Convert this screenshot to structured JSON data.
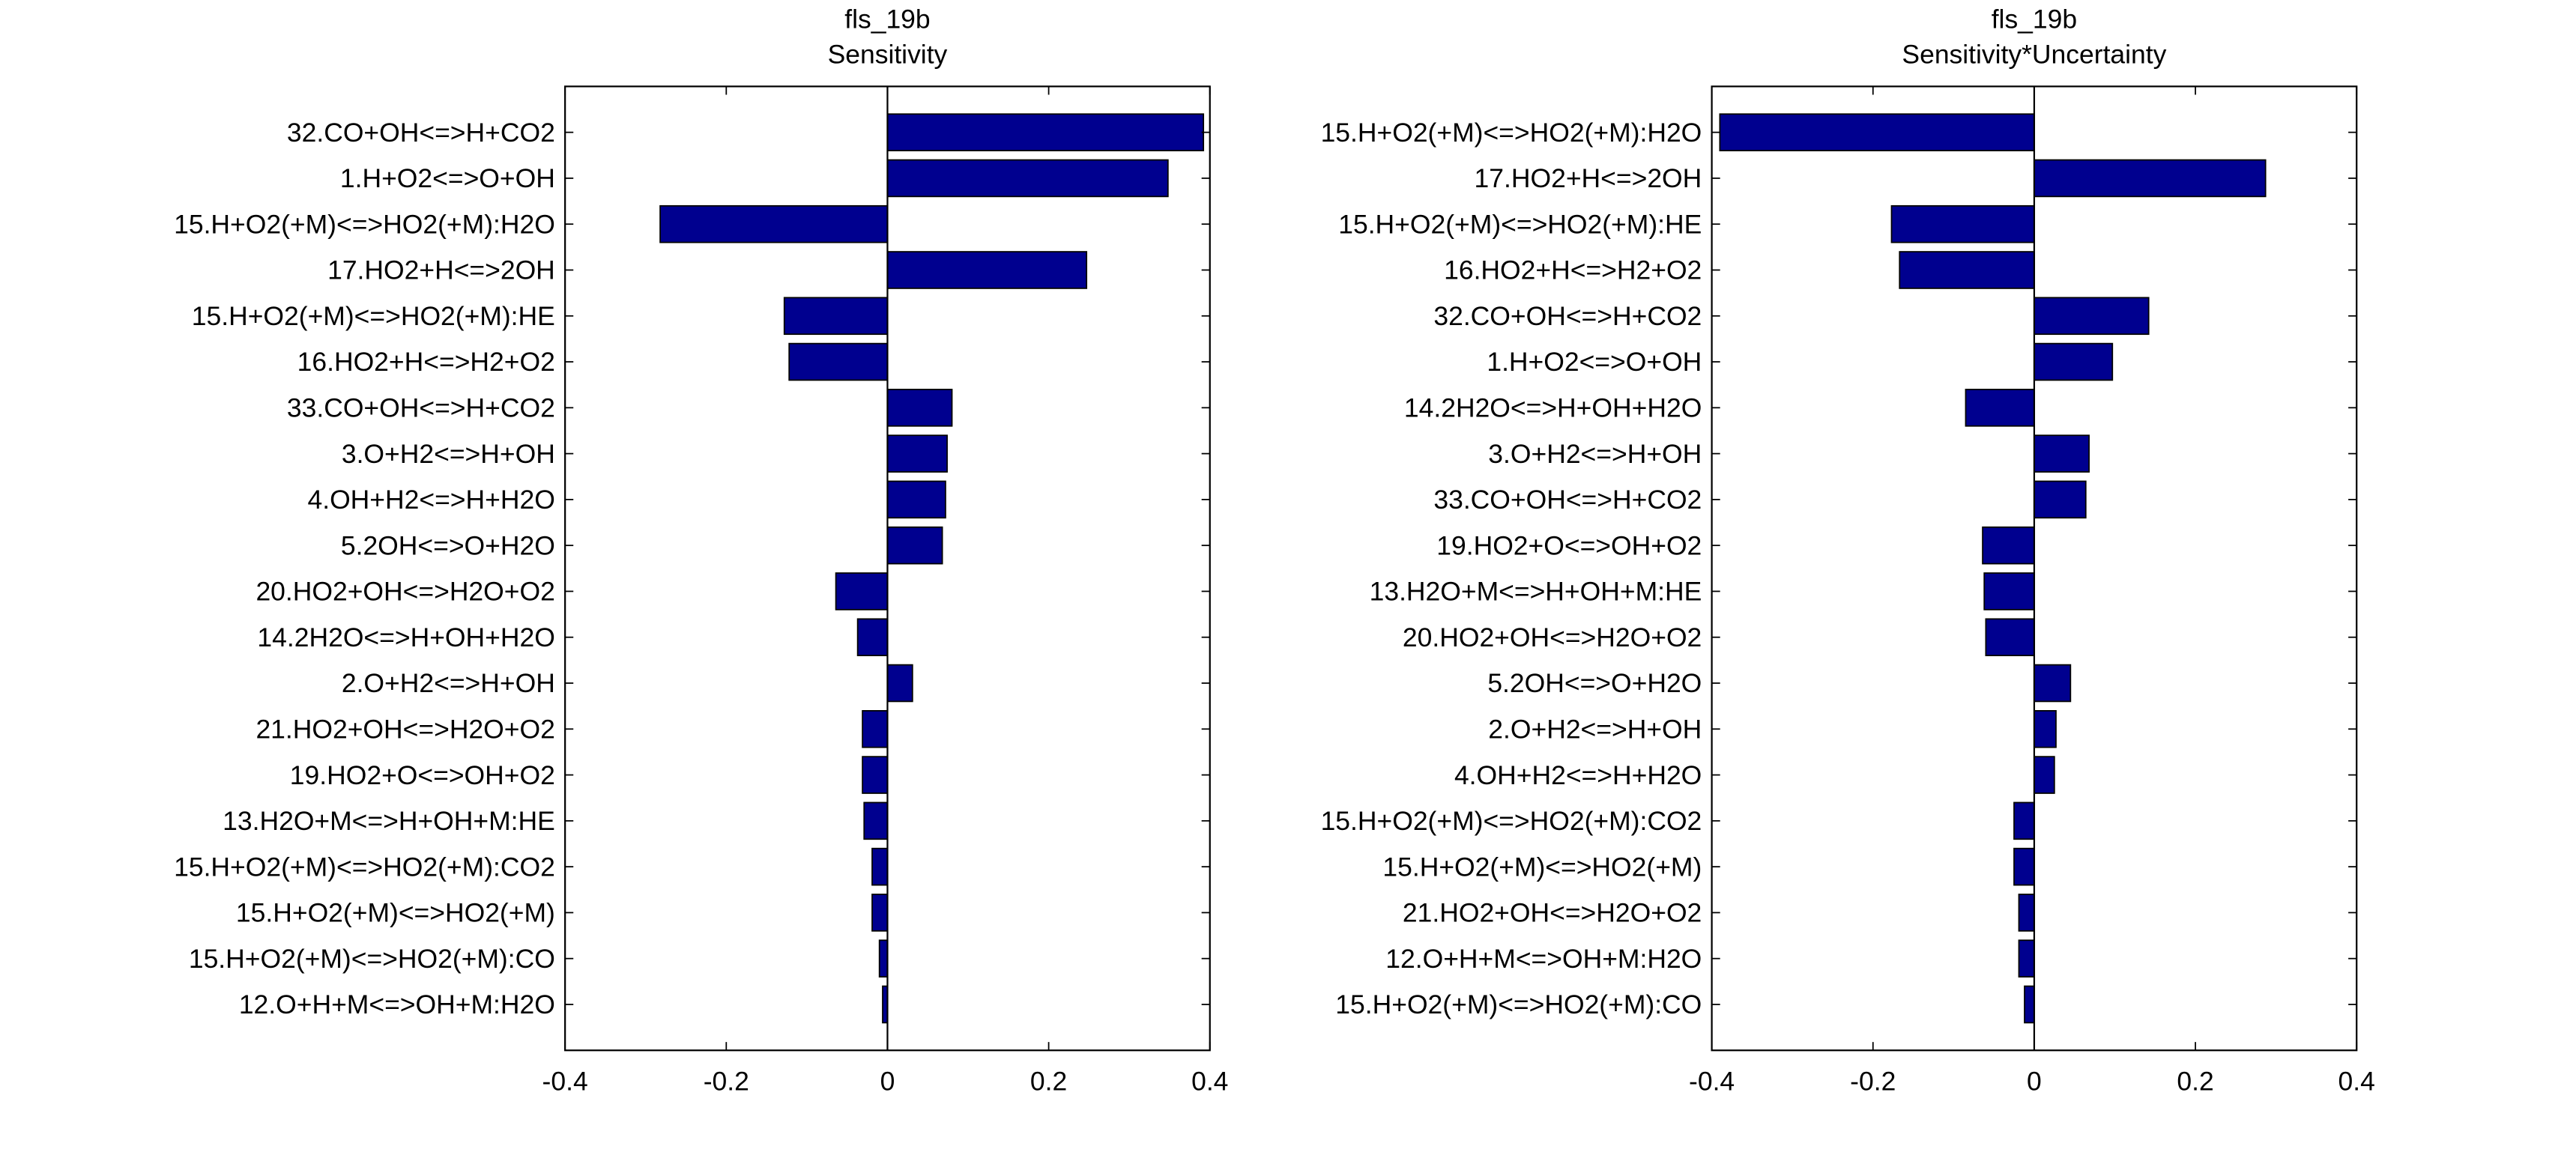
{
  "colors": {
    "bar": "#00008F",
    "axis": "#000000",
    "background": "#FFFFFF"
  },
  "chart_data": [
    {
      "type": "bar",
      "orientation": "horizontal",
      "title": "fls_19b",
      "subtitle": "Sensitivity",
      "xlim": [
        -0.4,
        0.4
      ],
      "xticks": [
        "-0.4",
        "-0.2",
        "0",
        "0.2",
        "0.4"
      ],
      "grid": false,
      "categories": [
        "32.CO+OH<=>H+CO2",
        "1.H+O2<=>O+OH",
        "15.H+O2(+M)<=>HO2(+M):H2O",
        "17.HO2+H<=>2OH",
        "15.H+O2(+M)<=>HO2(+M):HE",
        "16.HO2+H<=>H2+O2",
        "33.CO+OH<=>H+CO2",
        "3.O+H2<=>H+OH",
        "4.OH+H2<=>H+H2O",
        "5.2OH<=>O+H2O",
        "20.HO2+OH<=>H2O+O2",
        "14.2H2O<=>H+OH+H2O",
        "2.O+H2<=>H+OH",
        "21.HO2+OH<=>H2O+O2",
        "19.HO2+O<=>OH+O2",
        "13.H2O+M<=>H+OH+M:HE",
        "15.H+O2(+M)<=>HO2(+M):CO2",
        "15.H+O2(+M)<=>HO2(+M)",
        "15.H+O2(+M)<=>HO2(+M):CO",
        "12.O+H+M<=>OH+M:H2O"
      ],
      "values": [
        0.392,
        0.348,
        -0.282,
        0.247,
        -0.128,
        -0.122,
        0.08,
        0.074,
        0.072,
        0.068,
        -0.064,
        -0.037,
        0.031,
        -0.031,
        -0.031,
        -0.029,
        -0.019,
        -0.019,
        -0.01,
        -0.006
      ]
    },
    {
      "type": "bar",
      "orientation": "horizontal",
      "title": "fls_19b",
      "subtitle": "Sensitivity*Uncertainty",
      "xlim": [
        -0.4,
        0.4
      ],
      "xticks": [
        "-0.4",
        "-0.2",
        "0",
        "0.2",
        "0.4"
      ],
      "grid": false,
      "categories": [
        "15.H+O2(+M)<=>HO2(+M):H2O",
        "17.HO2+H<=>2OH",
        "15.H+O2(+M)<=>HO2(+M):HE",
        "16.HO2+H<=>H2+O2",
        "32.CO+OH<=>H+CO2",
        "1.H+O2<=>O+OH",
        "14.2H2O<=>H+OH+H2O",
        "3.O+H2<=>H+OH",
        "33.CO+OH<=>H+CO2",
        "19.HO2+O<=>OH+O2",
        "13.H2O+M<=>H+OH+M:HE",
        "20.HO2+OH<=>H2O+O2",
        "5.2OH<=>O+H2O",
        "2.O+H2<=>H+OH",
        "4.OH+H2<=>H+H2O",
        "15.H+O2(+M)<=>HO2(+M):CO2",
        "15.H+O2(+M)<=>HO2(+M)",
        "21.HO2+OH<=>H2O+O2",
        "12.O+H+M<=>OH+M:H2O",
        "15.H+O2(+M)<=>HO2(+M):CO"
      ],
      "values": [
        -0.39,
        0.287,
        -0.177,
        -0.167,
        0.142,
        0.097,
        -0.085,
        0.068,
        0.064,
        -0.064,
        -0.062,
        -0.06,
        0.045,
        0.027,
        0.025,
        -0.025,
        -0.025,
        -0.019,
        -0.019,
        -0.012
      ]
    }
  ]
}
